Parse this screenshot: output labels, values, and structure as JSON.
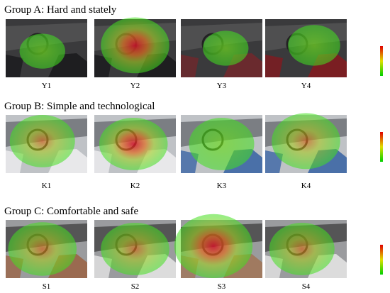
{
  "groups": [
    {
      "title": "Group A: Hard and stately",
      "panels": [
        {
          "label": "Y1"
        },
        {
          "label": "Y2"
        },
        {
          "label": "Y3"
        },
        {
          "label": "Y4"
        }
      ]
    },
    {
      "title": "Group B: Simple and technological",
      "panels": [
        {
          "label": "K1"
        },
        {
          "label": "K2"
        },
        {
          "label": "K3"
        },
        {
          "label": "K4"
        }
      ]
    },
    {
      "title": "Group C: Comfortable and safe",
      "panels": [
        {
          "label": "S1"
        },
        {
          "label": "S2"
        },
        {
          "label": "S3"
        },
        {
          "label": "S4"
        }
      ]
    }
  ]
}
